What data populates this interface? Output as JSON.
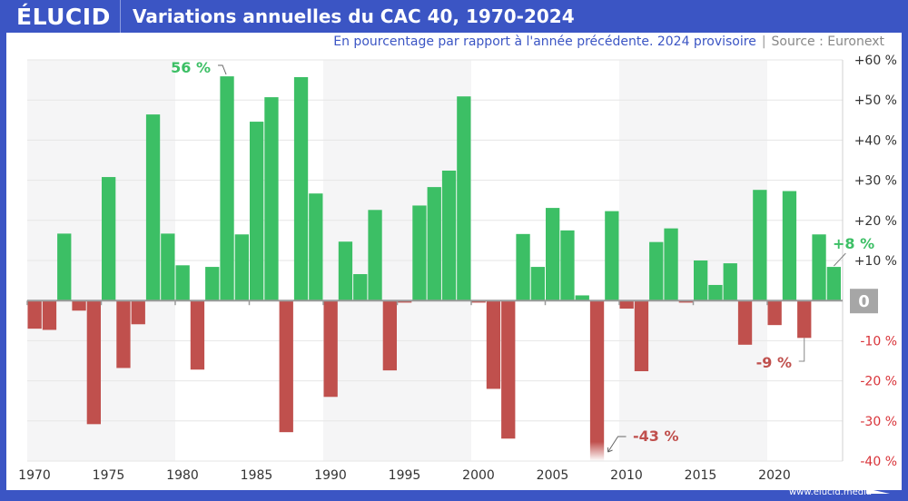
{
  "header": {
    "logo": "ÉLUCID",
    "title": "Variations annuelles du CAC 40, 1970-2024"
  },
  "subtitle": {
    "text": "En pourcentage par rapport à l'année précédente. 2024 provisoire",
    "separator": "|",
    "source": "Source : Euronext"
  },
  "footer": {
    "url": "www.elucid.media"
  },
  "colors": {
    "brand": "#3b55c4",
    "positive": "#3cbf65",
    "negative": "#c0504d",
    "band": "#f5f5f6",
    "grid": "#e6e6e6",
    "zero_badge": "#a6a6a6"
  },
  "chart_data": {
    "type": "bar",
    "title": "Variations annuelles du CAC 40, 1970-2024",
    "subtitle": "En pourcentage par rapport à l'année précédente. 2024 provisoire",
    "xlabel": "",
    "ylabel": "",
    "ylim": [
      -40,
      60
    ],
    "grid": true,
    "y_axis_position": "right",
    "y_ticks": [
      {
        "value": 60,
        "label": "+60 %"
      },
      {
        "value": 50,
        "label": "+50 %"
      },
      {
        "value": 40,
        "label": "+40 %"
      },
      {
        "value": 30,
        "label": "+30 %"
      },
      {
        "value": 20,
        "label": "+20 %"
      },
      {
        "value": 10,
        "label": "+10 %"
      },
      {
        "value": 0,
        "label": "0"
      },
      {
        "value": -10,
        "label": "-10 %"
      },
      {
        "value": -20,
        "label": "-20 %"
      },
      {
        "value": -30,
        "label": "-30 %"
      },
      {
        "value": -40,
        "label": "-40 %"
      }
    ],
    "x_ticks": [
      "1970",
      "1975",
      "1980",
      "1985",
      "1990",
      "1995",
      "2000",
      "2005",
      "2010",
      "2015",
      "2020"
    ],
    "shaded_decades": [
      [
        1970,
        1979
      ],
      [
        1990,
        1999
      ],
      [
        2010,
        2019
      ]
    ],
    "categories": [
      "1970",
      "1971",
      "1972",
      "1973",
      "1974",
      "1975",
      "1976",
      "1977",
      "1978",
      "1979",
      "1980",
      "1981",
      "1982",
      "1983",
      "1984",
      "1985",
      "1986",
      "1987",
      "1988",
      "1989",
      "1990",
      "1991",
      "1992",
      "1993",
      "1994",
      "1995",
      "1996",
      "1997",
      "1998",
      "1999",
      "2000",
      "2001",
      "2002",
      "2003",
      "2004",
      "2005",
      "2006",
      "2007",
      "2008",
      "2009",
      "2010",
      "2011",
      "2012",
      "2013",
      "2014",
      "2015",
      "2016",
      "2017",
      "2018",
      "2019",
      "2020",
      "2021",
      "2022",
      "2023",
      "2024"
    ],
    "values": [
      -7.0,
      -7.3,
      16.7,
      -2.5,
      -30.8,
      30.8,
      -16.8,
      -5.9,
      46.4,
      16.7,
      8.8,
      -17.2,
      8.4,
      55.9,
      16.5,
      44.6,
      50.7,
      -32.8,
      55.7,
      26.7,
      -24.0,
      14.7,
      6.6,
      22.6,
      -17.4,
      -0.5,
      23.7,
      28.3,
      32.4,
      50.9,
      -0.5,
      -22.0,
      -34.4,
      16.6,
      8.4,
      23.1,
      17.5,
      1.3,
      -42.7,
      22.3,
      -2.0,
      -17.6,
      14.6,
      18.0,
      -0.5,
      10.0,
      3.9,
      9.3,
      -11.0,
      27.6,
      -6.1,
      27.3,
      -9.3,
      16.5,
      8.4
    ],
    "annotations": [
      {
        "year": "1983",
        "label": "56 %",
        "color": "positive"
      },
      {
        "year": "2008",
        "label": "-43 %",
        "color": "negative"
      },
      {
        "year": "2022",
        "label": "-9 %",
        "color": "negative"
      },
      {
        "year": "2024",
        "label": "+8 %",
        "color": "positive"
      }
    ]
  }
}
